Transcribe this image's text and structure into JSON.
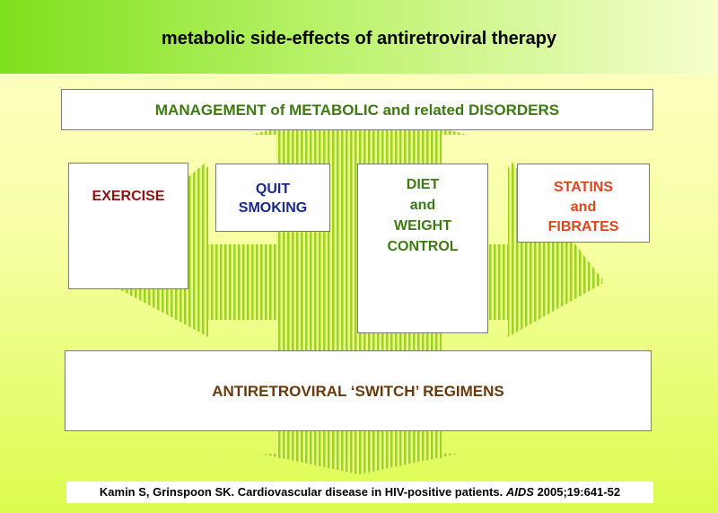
{
  "title": "metabolic side-effects of antiretroviral therapy",
  "management": "MANAGEMENT of METABOLIC and related DISORDERS",
  "interventions": {
    "exercise": "EXERCISE",
    "smoking": [
      "QUIT",
      "SMOKING"
    ],
    "diet": [
      "DIET",
      "and",
      "WEIGHT",
      "CONTROL"
    ],
    "statins": [
      "STATINS",
      "and",
      "FIBRATES"
    ]
  },
  "switch_regimens": "ANTIRETROVIRAL ‘SWITCH’ REGIMENS",
  "citation": {
    "authors_title": "Kamin S, Grinspoon SK. Cardiovascular disease in HIV-positive patients.",
    "journal": "AIDS",
    "details": "2005;19:641-52"
  },
  "colors": {
    "title_bar_start": "#7ee01c",
    "arrow_stripe": "#9fd41e",
    "management_text": "#3e7a12",
    "smoking_text": "#1a2a8c",
    "exercise_text": "#8e1414",
    "statins_text": "#e0461c",
    "switch_text": "#6a3a0c"
  }
}
